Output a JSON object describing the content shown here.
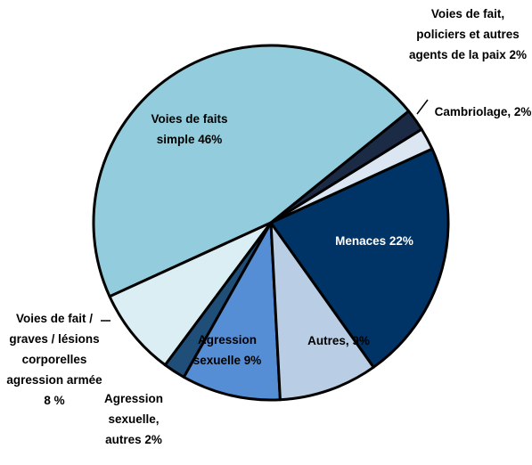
{
  "chart_data": {
    "type": "pie",
    "categories": [
      "Voies de fait, policiers et autres agents de la paix",
      "Cambriolage,",
      "Menaces",
      "Autres,",
      "Agression sexuelle",
      "Agression sexuelle, autres",
      "Voies de fait / graves / lésions corporelles agression armée",
      "Voies de faits simple"
    ],
    "values": [
      2,
      2,
      22,
      9,
      9,
      2,
      8,
      46
    ],
    "value_labels": [
      "2%",
      "2%",
      "22%",
      "9%",
      "9%",
      "2%",
      "8 %",
      "46%"
    ],
    "colors": [
      "#1b2a45",
      "#dce6f2",
      "#003366",
      "#b9cde5",
      "#558ed5",
      "#1f4e79",
      "#dbeef4",
      "#93cddd"
    ]
  }
}
